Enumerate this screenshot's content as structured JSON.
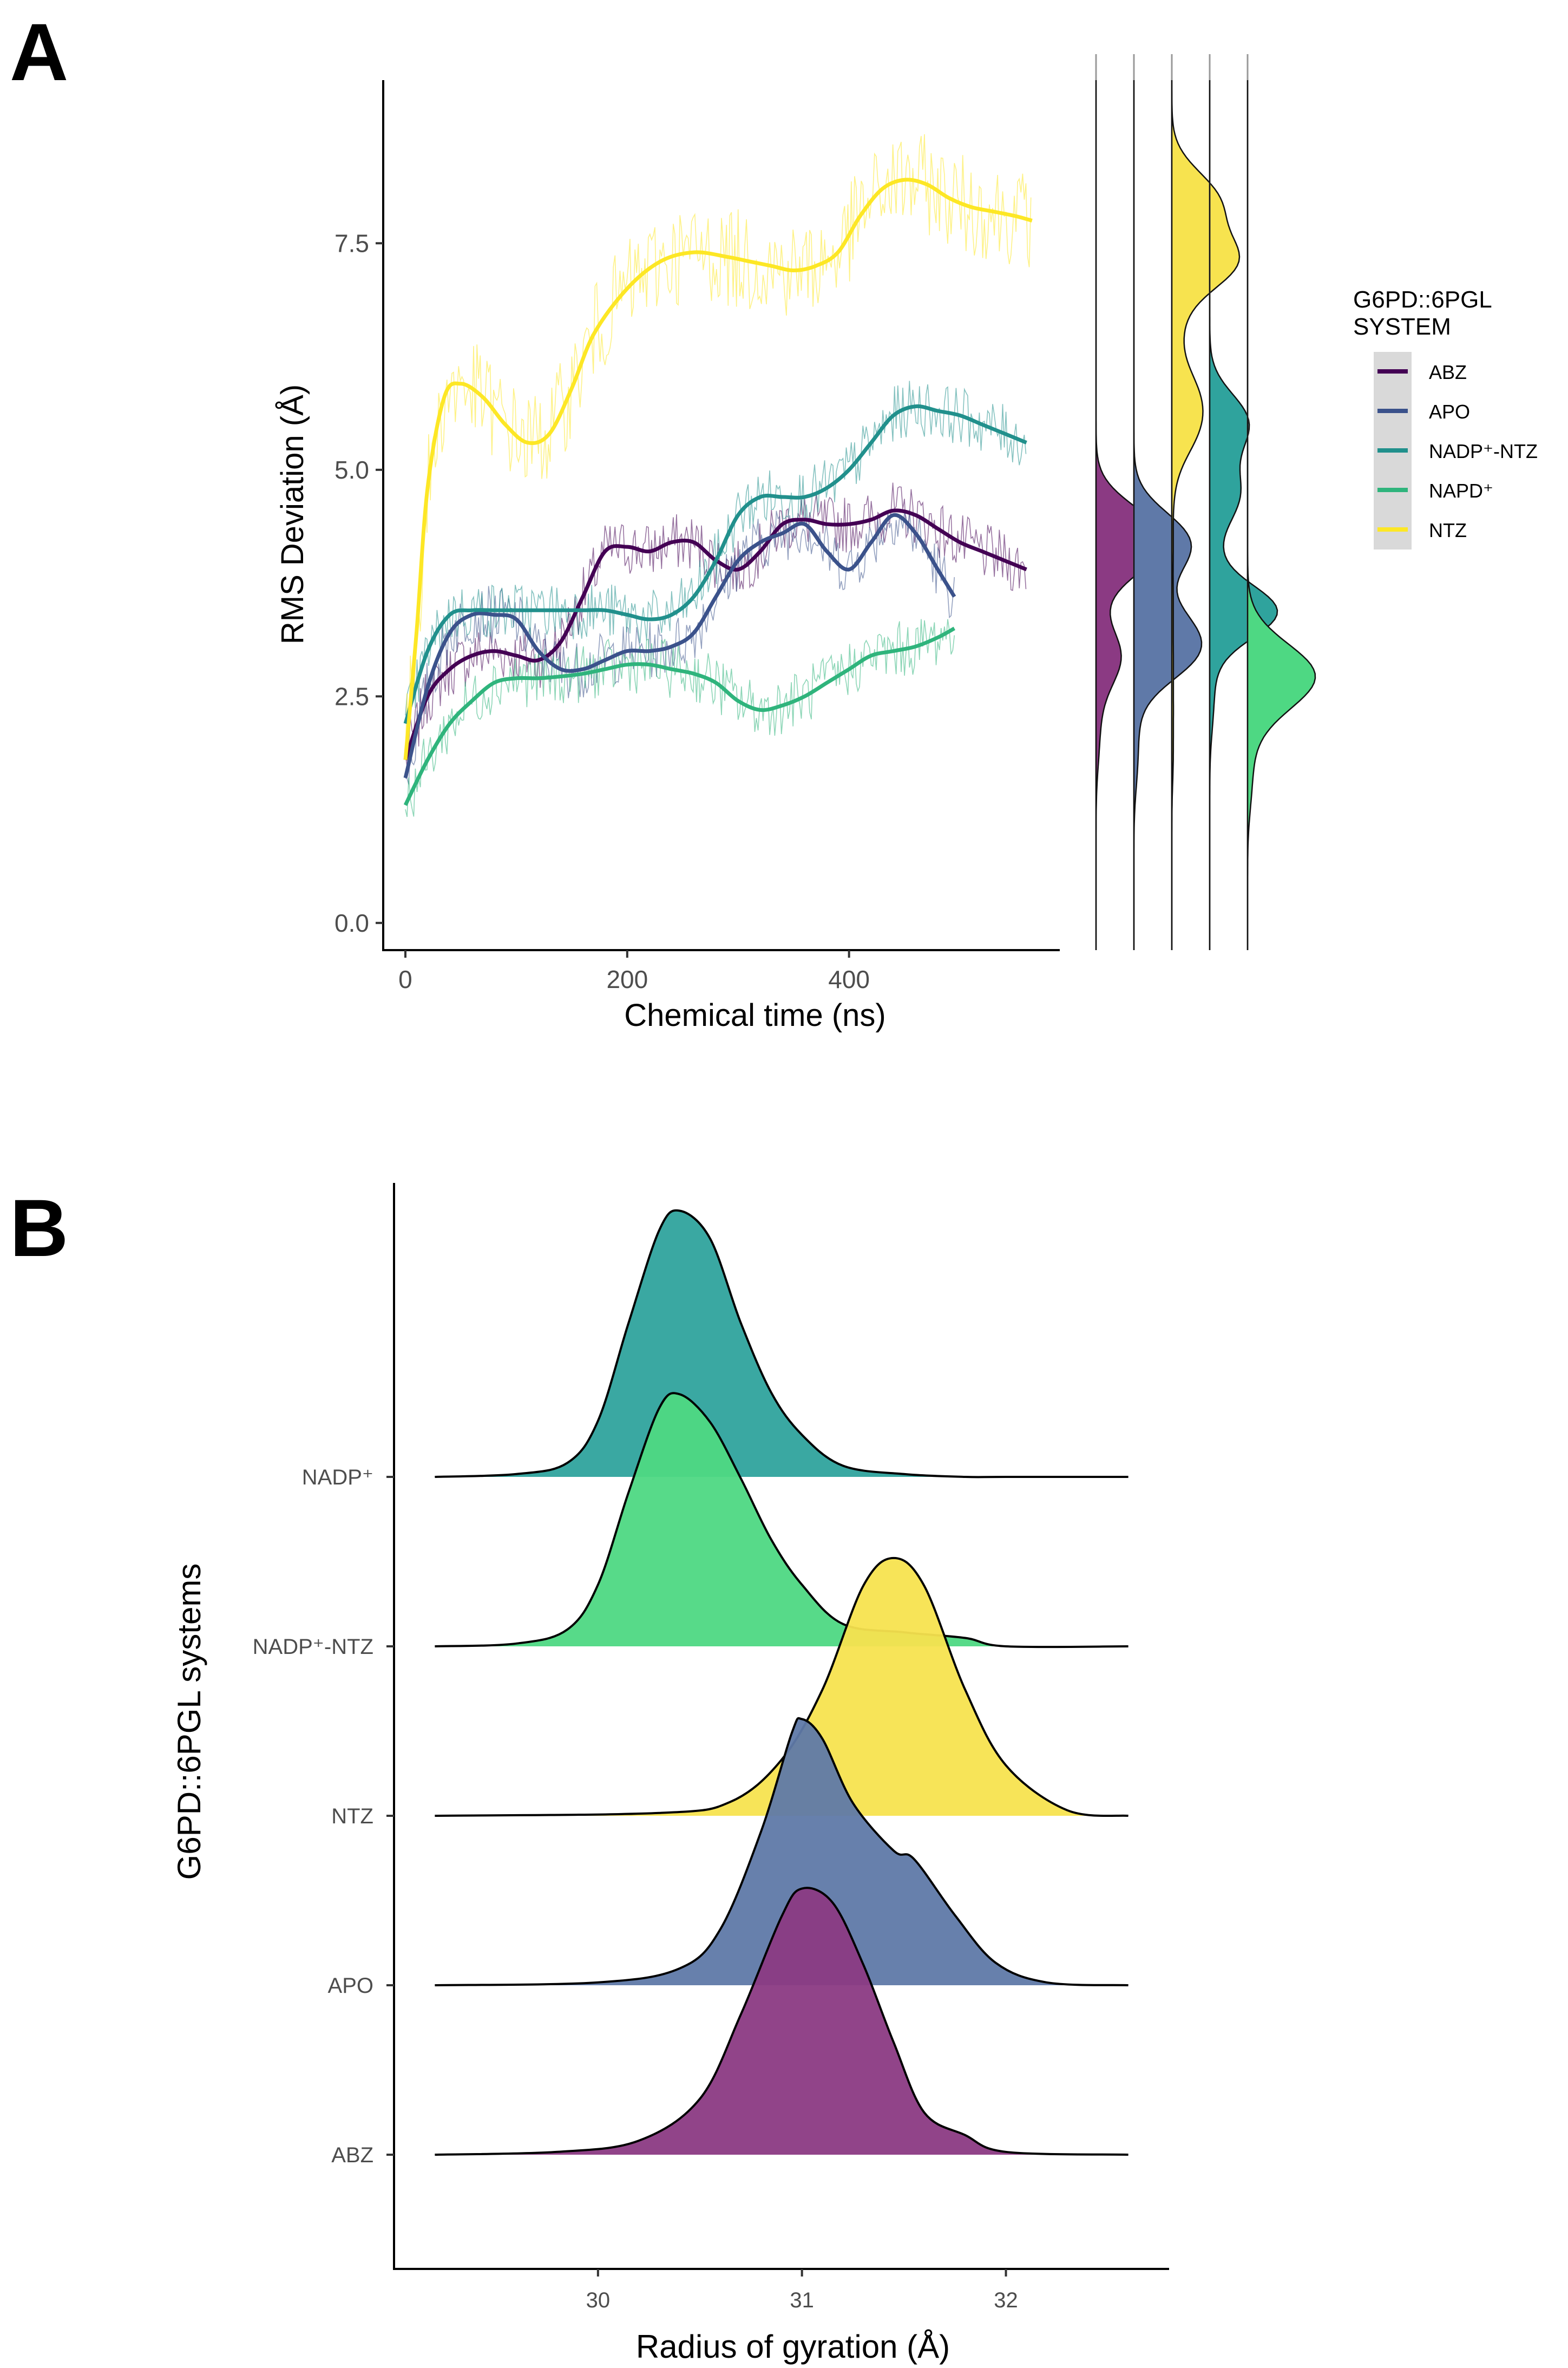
{
  "panels": {
    "a": "A",
    "b": "B"
  },
  "chart_data": [
    {
      "type": "line",
      "panel": "A",
      "xlabel": "Chemical  time (ns)",
      "ylabel": "RMS Deviation (Å)",
      "xlim": [
        -20,
        590
      ],
      "ylim": [
        -0.3,
        9.3
      ],
      "xticks": [
        0,
        200,
        400
      ],
      "yticks": [
        0.0,
        2.5,
        5.0,
        7.5
      ],
      "ytick_labels": [
        "0.0",
        "2.5",
        "5.0",
        "7.5"
      ],
      "legend": {
        "title_line1": "G6PD::6PGL",
        "title_line2": "SYSTEM",
        "placement": "right",
        "entries": [
          "ABZ",
          "APO",
          "NADP⁺-NTZ",
          "NAPD⁺",
          "NTZ"
        ]
      },
      "series": [
        {
          "name": "ABZ",
          "color": "#440154",
          "x": [
            0,
            20,
            40,
            60,
            80,
            100,
            120,
            140,
            160,
            180,
            200,
            220,
            240,
            260,
            280,
            300,
            320,
            340,
            360,
            380,
            400,
            420,
            440,
            460,
            480,
            500,
            520,
            540,
            560
          ],
          "y": [
            1.8,
            2.5,
            2.8,
            2.95,
            3.0,
            2.95,
            2.9,
            3.1,
            3.6,
            4.1,
            4.15,
            4.1,
            4.2,
            4.2,
            4.0,
            3.9,
            4.1,
            4.4,
            4.45,
            4.4,
            4.4,
            4.45,
            4.55,
            4.5,
            4.35,
            4.2,
            4.1,
            4.0,
            3.9
          ]
        },
        {
          "name": "APO",
          "color": "#3b528b",
          "x": [
            0,
            20,
            40,
            60,
            80,
            100,
            120,
            140,
            160,
            180,
            200,
            220,
            240,
            260,
            280,
            300,
            320,
            340,
            360,
            380,
            400,
            420,
            440,
            460,
            480,
            495
          ],
          "y": [
            1.6,
            2.6,
            3.2,
            3.4,
            3.4,
            3.35,
            3.0,
            2.8,
            2.8,
            2.9,
            3.0,
            3.0,
            3.05,
            3.2,
            3.6,
            4.0,
            4.2,
            4.3,
            4.4,
            4.1,
            3.9,
            4.2,
            4.5,
            4.3,
            3.9,
            3.6
          ]
        },
        {
          "name": "NADP⁺-NTZ",
          "color": "#21908c",
          "x": [
            0,
            20,
            40,
            60,
            80,
            100,
            120,
            140,
            160,
            180,
            200,
            220,
            240,
            260,
            280,
            300,
            320,
            340,
            360,
            380,
            400,
            420,
            440,
            460,
            480,
            500,
            520,
            540,
            560
          ],
          "y": [
            2.2,
            3.0,
            3.4,
            3.45,
            3.45,
            3.45,
            3.45,
            3.45,
            3.45,
            3.45,
            3.4,
            3.35,
            3.4,
            3.6,
            4.0,
            4.5,
            4.7,
            4.7,
            4.7,
            4.8,
            5.0,
            5.3,
            5.6,
            5.7,
            5.65,
            5.6,
            5.5,
            5.4,
            5.3
          ]
        },
        {
          "name": "NAPD⁺",
          "color": "#2fb47c",
          "x": [
            0,
            20,
            40,
            60,
            80,
            100,
            120,
            140,
            160,
            180,
            200,
            220,
            240,
            260,
            280,
            300,
            320,
            340,
            360,
            380,
            400,
            420,
            440,
            460,
            480,
            495
          ],
          "y": [
            1.3,
            1.8,
            2.2,
            2.45,
            2.65,
            2.7,
            2.7,
            2.72,
            2.75,
            2.8,
            2.85,
            2.85,
            2.8,
            2.75,
            2.65,
            2.45,
            2.35,
            2.4,
            2.5,
            2.65,
            2.8,
            2.95,
            3.0,
            3.05,
            3.15,
            3.25
          ]
        },
        {
          "name": "NTZ",
          "color": "#fde725",
          "x": [
            0,
            10,
            20,
            35,
            50,
            70,
            90,
            110,
            130,
            150,
            170,
            200,
            230,
            260,
            290,
            310,
            330,
            350,
            370,
            390,
            410,
            430,
            450,
            470,
            490,
            510,
            530,
            550,
            565
          ],
          "y": [
            1.8,
            3.2,
            4.8,
            5.8,
            5.95,
            5.8,
            5.5,
            5.3,
            5.4,
            5.9,
            6.5,
            7.0,
            7.3,
            7.4,
            7.35,
            7.3,
            7.25,
            7.2,
            7.25,
            7.4,
            7.8,
            8.1,
            8.2,
            8.15,
            8.0,
            7.9,
            7.85,
            7.8,
            7.75
          ]
        }
      ],
      "marginal_density": {
        "order": [
          "ABZ",
          "APO",
          "NTZ",
          "NADP⁺-NTZ",
          "NAPD⁺"
        ],
        "fills": [
          "#8b3a83",
          "#5f79a8",
          "#f7e34f",
          "#2fa39d",
          "#4ed883"
        ]
      }
    },
    {
      "type": "ridgeline",
      "panel": "B",
      "xlabel": "Radius of gyration (Å)",
      "ylabel": "G6PD::6PGL systems",
      "xlim": [
        29.0,
        32.8
      ],
      "xticks": [
        30,
        31,
        32
      ],
      "categories": [
        "ABZ",
        "APO",
        "NTZ",
        "NADP⁺-NTZ",
        "NADP⁺"
      ],
      "series": [
        {
          "name": "ABZ",
          "color": "#8b3a83",
          "x": [
            29.2,
            29.8,
            30.2,
            30.5,
            30.7,
            30.9,
            31.0,
            31.15,
            31.3,
            31.45,
            31.6,
            31.8,
            32.0,
            32.6
          ],
          "y": [
            0,
            0.01,
            0.05,
            0.2,
            0.5,
            0.85,
            0.95,
            0.9,
            0.68,
            0.4,
            0.15,
            0.07,
            0.01,
            0
          ]
        },
        {
          "name": "APO",
          "color": "#5f79a8",
          "x": [
            29.2,
            30.0,
            30.4,
            30.6,
            30.8,
            30.95,
            31.0,
            31.1,
            31.25,
            31.45,
            31.55,
            31.75,
            31.95,
            32.2,
            32.6
          ],
          "y": [
            0,
            0.01,
            0.06,
            0.2,
            0.55,
            0.9,
            0.95,
            0.88,
            0.65,
            0.48,
            0.45,
            0.25,
            0.08,
            0.01,
            0
          ]
        },
        {
          "name": "NTZ",
          "color": "#f7e34f",
          "x": [
            29.2,
            30.3,
            30.65,
            30.9,
            31.1,
            31.3,
            31.45,
            31.6,
            31.8,
            32.0,
            32.3,
            32.6
          ],
          "y": [
            0,
            0.01,
            0.05,
            0.2,
            0.45,
            0.82,
            0.92,
            0.82,
            0.45,
            0.18,
            0.02,
            0
          ]
        },
        {
          "name": "NADP⁺-NTZ",
          "color": "#4ed883",
          "x": [
            29.2,
            29.6,
            29.85,
            30.0,
            30.15,
            30.3,
            30.4,
            30.55,
            30.7,
            30.85,
            31.0,
            31.2,
            31.5,
            31.8,
            32.0,
            32.6
          ],
          "y": [
            0,
            0.01,
            0.06,
            0.22,
            0.55,
            0.85,
            0.9,
            0.8,
            0.6,
            0.38,
            0.22,
            0.08,
            0.05,
            0.03,
            0,
            0
          ]
        },
        {
          "name": "NADP⁺",
          "color": "#2fa39d",
          "x": [
            29.2,
            29.6,
            29.85,
            30.0,
            30.15,
            30.3,
            30.4,
            30.55,
            30.7,
            30.85,
            31.0,
            31.2,
            31.5,
            31.8,
            32.0,
            32.6
          ],
          "y": [
            0,
            0.01,
            0.05,
            0.2,
            0.55,
            0.88,
            0.95,
            0.85,
            0.55,
            0.3,
            0.15,
            0.04,
            0.01,
            0,
            0,
            0
          ]
        }
      ]
    }
  ]
}
